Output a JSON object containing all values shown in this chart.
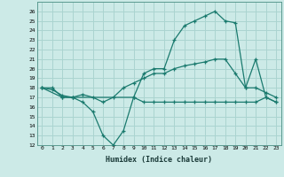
{
  "xlabel": "Humidex (Indice chaleur)",
  "background_color": "#cceae7",
  "grid_color": "#aad4d0",
  "line_color": "#1a7a6e",
  "xlim": [
    -0.5,
    23.5
  ],
  "ylim": [
    12,
    27
  ],
  "xticks": [
    0,
    1,
    2,
    3,
    4,
    5,
    6,
    7,
    8,
    9,
    10,
    11,
    12,
    13,
    14,
    15,
    16,
    17,
    18,
    19,
    20,
    21,
    22,
    23
  ],
  "yticks": [
    12,
    13,
    14,
    15,
    16,
    17,
    18,
    19,
    20,
    21,
    22,
    23,
    24,
    25,
    26
  ],
  "line1_x": [
    0,
    1,
    2,
    3,
    4,
    5,
    6,
    7,
    8,
    9,
    10,
    11,
    12,
    13,
    14,
    15,
    16,
    17,
    18,
    19,
    20,
    21,
    22,
    23
  ],
  "line1_y": [
    18,
    18,
    17,
    17,
    16.5,
    15.5,
    13,
    12,
    13.5,
    17,
    19.5,
    20,
    20,
    23,
    24.5,
    25,
    25.5,
    26,
    25,
    24.8,
    18,
    21,
    17,
    16.5
  ],
  "line2_x": [
    0,
    1,
    2,
    3,
    4,
    5,
    6,
    7,
    8,
    9,
    10,
    11,
    12,
    13,
    14,
    15,
    16,
    17,
    18,
    19,
    20,
    21,
    22,
    23
  ],
  "line2_y": [
    18,
    17.8,
    17.2,
    17,
    17.3,
    17,
    16.5,
    17,
    18,
    18.5,
    19,
    19.5,
    19.5,
    20,
    20.3,
    20.5,
    20.7,
    21,
    21,
    19.5,
    18,
    18,
    17.5,
    17
  ],
  "line3_x": [
    0,
    2,
    3,
    9,
    10,
    11,
    12,
    13,
    14,
    15,
    16,
    17,
    18,
    19,
    20,
    21,
    22,
    23
  ],
  "line3_y": [
    18,
    17,
    17,
    17,
    16.5,
    16.5,
    16.5,
    16.5,
    16.5,
    16.5,
    16.5,
    16.5,
    16.5,
    16.5,
    16.5,
    16.5,
    17,
    16.5
  ]
}
